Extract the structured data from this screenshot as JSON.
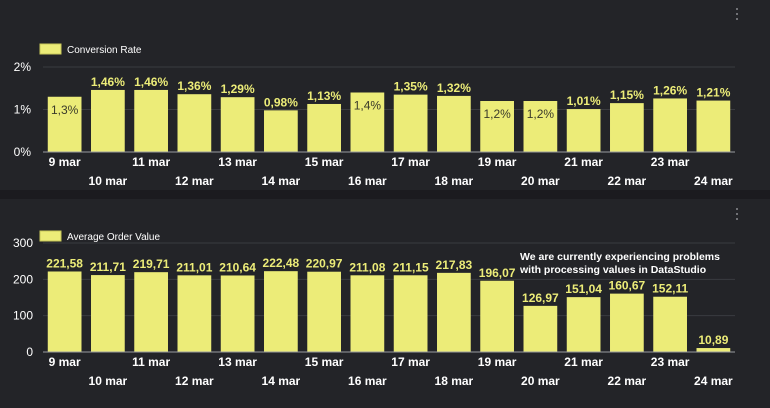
{
  "colors": {
    "bar": "#ecec78",
    "bar_stroke": "#c9c95a",
    "label_outside": "#ecec78",
    "label_inside": "#3a3a2a",
    "tick": "#ffffff",
    "grid": "#3a3b40"
  },
  "menu": {
    "icon": "kebab-menu-icon"
  },
  "notice": "We are currently experiencing problems\nwith processing values in DataStudio",
  "chart_data": [
    {
      "type": "bar",
      "legend": "Conversion Rate",
      "legend_position": "top-left",
      "categories": [
        "9 mar",
        "10 mar",
        "11 mar",
        "12 mar",
        "13 mar",
        "14 mar",
        "15 mar",
        "16 mar",
        "17 mar",
        "18 mar",
        "19 mar",
        "20 mar",
        "21 mar",
        "22 mar",
        "23 mar",
        "24 mar"
      ],
      "values": [
        1.3,
        1.46,
        1.46,
        1.36,
        1.29,
        0.98,
        1.13,
        1.4,
        1.35,
        1.32,
        1.2,
        1.2,
        1.01,
        1.15,
        1.26,
        1.21
      ],
      "value_labels": [
        "1,3%",
        "1,46%",
        "1,46%",
        "1,36%",
        "1,29%",
        "0,98%",
        "1,13%",
        "1,4%",
        "1,35%",
        "1,32%",
        "1,2%",
        "1,2%",
        "1,01%",
        "1,15%",
        "1,26%",
        "1,21%"
      ],
      "label_inside": [
        true,
        false,
        false,
        false,
        false,
        false,
        false,
        true,
        false,
        false,
        true,
        true,
        false,
        false,
        false,
        false
      ],
      "yticks": [
        0,
        1,
        2
      ],
      "ytick_labels": [
        "0%",
        "1%",
        "2%"
      ],
      "ylim": [
        0,
        2
      ]
    },
    {
      "type": "bar",
      "legend": "Average Order Value",
      "legend_position": "top-left",
      "categories": [
        "9 mar",
        "10 mar",
        "11 mar",
        "12 mar",
        "13 mar",
        "14 mar",
        "15 mar",
        "16 mar",
        "17 mar",
        "18 mar",
        "19 mar",
        "20 mar",
        "21 mar",
        "22 mar",
        "23 mar",
        "24 mar"
      ],
      "values": [
        221.58,
        211.71,
        219.71,
        211.01,
        210.64,
        222.48,
        220.97,
        211.08,
        211.15,
        217.83,
        196.07,
        126.97,
        151.04,
        160.67,
        152.11,
        10.89
      ],
      "value_labels": [
        "221,58",
        "211,71",
        "219,71",
        "211,01",
        "210,64",
        "222,48",
        "220,97",
        "211,08",
        "211,15",
        "217,83",
        "196,07",
        "126,97",
        "151,04",
        "160,67",
        "152,11",
        "10,89"
      ],
      "label_inside": [
        false,
        false,
        false,
        false,
        false,
        false,
        false,
        false,
        false,
        false,
        false,
        false,
        false,
        false,
        false,
        false
      ],
      "yticks": [
        0,
        100,
        200,
        300
      ],
      "ytick_labels": [
        "0",
        "100",
        "200",
        "300"
      ],
      "ylim": [
        0,
        300
      ]
    }
  ]
}
